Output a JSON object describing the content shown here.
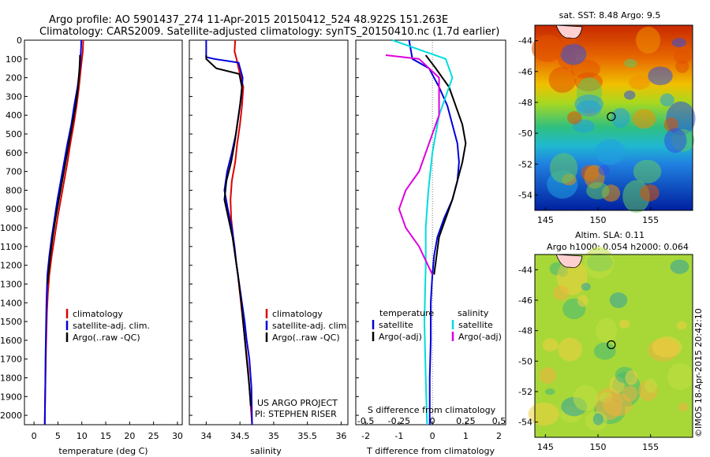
{
  "header": {
    "line1": "Argo profile: AO 5901437_274 11-Apr-2015 20150412_524 48.922S 151.263E",
    "line2": "Climatology: CARS2009. Satellite-adjusted climatology: synTS_20150410.nc (1.7d earlier)"
  },
  "chart_data": [
    {
      "type": "line",
      "xlabel": "temperature (deg C)",
      "xlim": [
        -2,
        31
      ],
      "xticks": [
        0,
        5,
        10,
        15,
        20,
        25,
        30
      ],
      "ylim": [
        2050,
        0
      ],
      "yticks": [
        0,
        100,
        200,
        300,
        400,
        500,
        600,
        700,
        800,
        900,
        1000,
        1100,
        1200,
        1300,
        1400,
        1500,
        1600,
        1700,
        1800,
        1900,
        2000
      ],
      "legend": [
        "climatology",
        "satellite-adj. clim.",
        "Argo(..raw -QC)"
      ],
      "colors": {
        "climatology": "#dd0000",
        "satellite": "#0000dd",
        "argo": "#000000"
      },
      "series": [
        {
          "name": "climatology",
          "color": "#dd0000",
          "x": [
            10.3,
            10.2,
            9.8,
            9.4,
            8.9,
            8.3,
            7.6,
            7.0,
            6.3,
            5.6,
            4.9,
            4.3,
            3.7,
            3.2,
            2.9,
            2.7,
            2.6,
            2.5,
            2.4,
            2.3,
            2.25
          ],
          "y": [
            0,
            60,
            150,
            250,
            350,
            450,
            550,
            650,
            750,
            850,
            950,
            1050,
            1150,
            1250,
            1350,
            1450,
            1550,
            1650,
            1800,
            1950,
            2050
          ]
        },
        {
          "name": "satellite-adj. clim.",
          "color": "#0000dd",
          "x": [
            9.9,
            9.8,
            9.6,
            9.1,
            8.4,
            7.8,
            7.0,
            6.3,
            5.6,
            4.9,
            4.3,
            3.7,
            3.2,
            2.8,
            2.6,
            2.5,
            2.4,
            2.35,
            2.3,
            2.25
          ],
          "y": [
            0,
            60,
            150,
            250,
            350,
            450,
            550,
            650,
            750,
            850,
            950,
            1050,
            1150,
            1250,
            1400,
            1550,
            1700,
            1850,
            1950,
            2050
          ]
        },
        {
          "name": "Argo(..raw -QC)",
          "color": "#000000",
          "x": [
            9.6,
            9.6,
            9.5,
            9.2,
            8.7,
            8.0,
            7.3,
            6.6,
            5.9,
            5.2,
            4.5,
            3.9,
            3.4,
            3.0,
            2.8
          ],
          "y": [
            80,
            100,
            150,
            250,
            350,
            450,
            550,
            650,
            750,
            850,
            950,
            1050,
            1150,
            1250,
            1300
          ]
        }
      ]
    },
    {
      "type": "line",
      "xlabel": "salinity",
      "xlim": [
        33.75,
        36.1
      ],
      "xticks": [
        34,
        34.5,
        35,
        35.5,
        36
      ],
      "ylim": [
        2050,
        0
      ],
      "legend": [
        "climatology",
        "satellite-adj. clim.",
        "Argo(..raw -QC)"
      ],
      "footnote": [
        "US ARGO PROJECT",
        "PI: STEPHEN RISER"
      ],
      "series": [
        {
          "name": "climatology",
          "color": "#dd0000",
          "x": [
            34.43,
            34.42,
            34.45,
            34.48,
            34.55,
            34.53,
            34.5,
            34.46,
            34.43,
            34.38,
            34.36,
            34.37,
            34.4,
            34.43,
            34.47,
            34.5,
            34.53,
            34.56,
            34.59,
            34.62,
            34.65,
            34.68
          ],
          "y": [
            0,
            60,
            100,
            150,
            250,
            350,
            450,
            550,
            650,
            750,
            850,
            950,
            1050,
            1150,
            1250,
            1350,
            1450,
            1550,
            1650,
            1750,
            1900,
            2050
          ]
        },
        {
          "name": "satellite-adj. clim.",
          "color": "#0000dd",
          "x": [
            34.0,
            34.0,
            34.12,
            34.48,
            34.54,
            34.52,
            34.48,
            34.44,
            34.38,
            34.31,
            34.27,
            34.32,
            34.38,
            34.42,
            34.45,
            34.49,
            34.53,
            34.57,
            34.6,
            34.64,
            34.67,
            34.68
          ],
          "y": [
            0,
            90,
            100,
            120,
            200,
            300,
            400,
            500,
            600,
            700,
            800,
            900,
            1000,
            1100,
            1200,
            1300,
            1400,
            1500,
            1600,
            1700,
            1850,
            2050
          ]
        },
        {
          "name": "Argo(..raw -QC)",
          "color": "#000000",
          "x": [
            34.0,
            34.0,
            34.15,
            34.49,
            34.53,
            34.5,
            34.46,
            34.42,
            34.37,
            34.3,
            34.27,
            34.33,
            34.39,
            34.43,
            34.47,
            34.52,
            34.56,
            34.6,
            34.64,
            34.66
          ],
          "y": [
            80,
            100,
            150,
            180,
            250,
            350,
            450,
            550,
            650,
            750,
            850,
            950,
            1050,
            1150,
            1250,
            1400,
            1550,
            1700,
            1850,
            1950
          ]
        }
      ]
    },
    {
      "type": "line",
      "xlabel": "T difference from climatology",
      "xlabel_top": "S difference from climatology",
      "xlim": [
        -2.3,
        2.2
      ],
      "xticks": [
        -2,
        -1,
        0,
        1,
        2
      ],
      "xticks_top": [
        -0.5,
        -0.25,
        0,
        0.25,
        0.5
      ],
      "ylim": [
        2050,
        0
      ],
      "legend_left_title": "temperature",
      "legend_right_title": "salinity",
      "legend_left": [
        "satellite",
        "Argo(-adj)"
      ],
      "legend_right": [
        "satellite",
        "Argo(-adj)"
      ],
      "series": [
        {
          "name": "T satellite",
          "color": "#0000dd",
          "x": [
            -0.7,
            -0.6,
            -0.1,
            0.2,
            0.45,
            0.6,
            0.75,
            0.8,
            0.75,
            0.6,
            0.35,
            0.15,
            0.05,
            0.0,
            -0.05,
            -0.05,
            -0.08,
            -0.08
          ],
          "y": [
            0,
            100,
            150,
            250,
            350,
            450,
            550,
            650,
            750,
            850,
            950,
            1050,
            1150,
            1250,
            1400,
            1600,
            1800,
            2050
          ]
        },
        {
          "name": "T Argo(-adj)",
          "color": "#000000",
          "x": [
            -0.2,
            0.1,
            0.5,
            0.7,
            0.9,
            1.0,
            0.9,
            0.75,
            0.6,
            0.4,
            0.2,
            0.05
          ],
          "y": [
            80,
            150,
            250,
            350,
            450,
            550,
            650,
            750,
            850,
            950,
            1050,
            1250
          ]
        },
        {
          "name": "S satellite",
          "color": "#00dddd",
          "x": [
            -0.3,
            0.1,
            0.15,
            0.05,
            0.0,
            -0.03,
            -0.05,
            -0.05,
            -0.06,
            -0.05,
            -0.04
          ],
          "y": [
            0,
            100,
            200,
            400,
            600,
            800,
            1000,
            1200,
            1500,
            1800,
            2050
          ]
        },
        {
          "name": "S Argo(-adj)",
          "color": "#dd00dd",
          "x": [
            -0.35,
            -0.1,
            0.05,
            0.05,
            -0.05,
            -0.1,
            -0.2,
            -0.25,
            -0.2,
            -0.1,
            0.0
          ],
          "y": [
            80,
            100,
            200,
            400,
            600,
            700,
            800,
            900,
            1000,
            1100,
            1250
          ]
        }
      ]
    },
    {
      "type": "heatmap",
      "title": "sat. SST: 8.48 Argo: 9.5",
      "xlim": [
        144,
        159
      ],
      "ylim": [
        -55,
        -43
      ],
      "xticks": [
        145,
        150,
        155
      ],
      "yticks": [
        -44,
        -46,
        -48,
        -50,
        -52,
        -54
      ],
      "marker": {
        "lon": 151.263,
        "lat": -48.922
      }
    },
    {
      "type": "heatmap",
      "title": "Altim. SLA: 0.11",
      "subtitle": "Argo h1000: 0.054 h2000: 0.064",
      "xlim": [
        144,
        159
      ],
      "ylim": [
        -55,
        -43
      ],
      "xticks": [
        145,
        150,
        155
      ],
      "yticks": [
        -44,
        -46,
        -48,
        -50,
        -52,
        -54
      ],
      "marker": {
        "lon": 151.263,
        "lat": -48.922
      }
    }
  ],
  "credit": "©IMOS 18-Apr-2015 20:42:10"
}
